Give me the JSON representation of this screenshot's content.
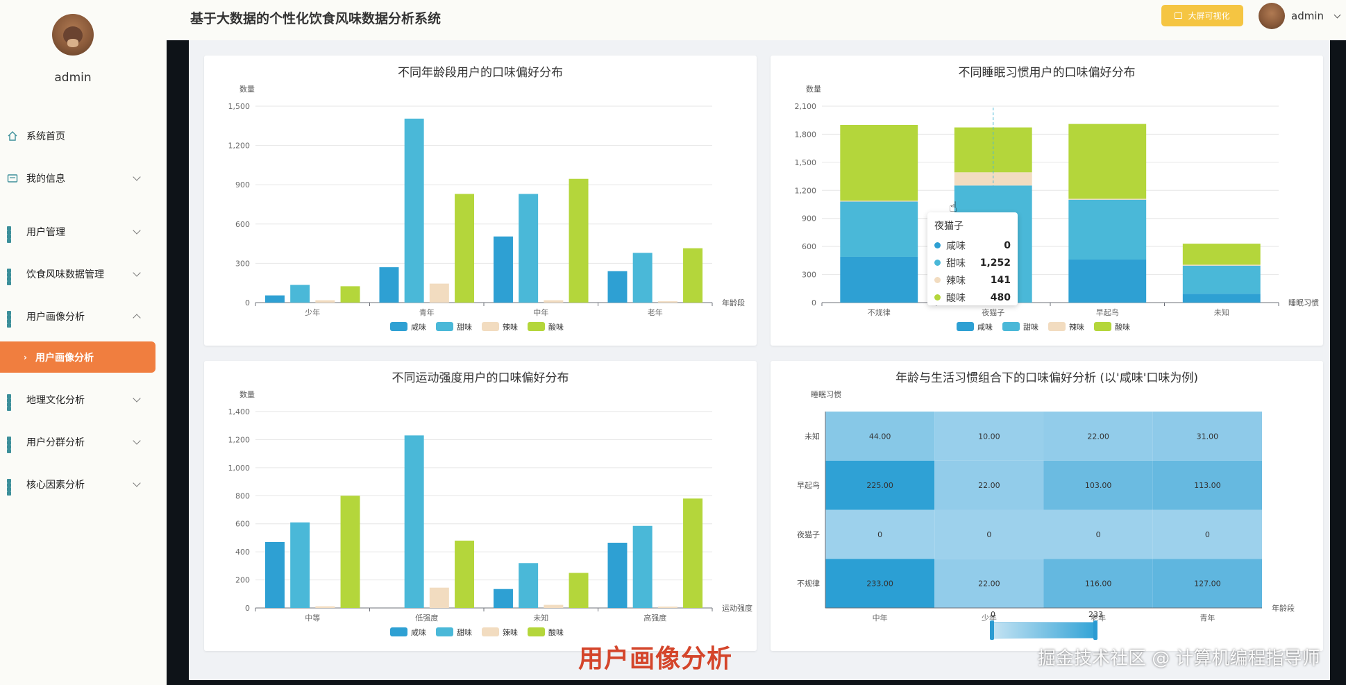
{
  "app": {
    "title": "基于大数据的个性化饮食风味数据分析系统"
  },
  "header": {
    "bigscreen_label": "大屏可视化",
    "user": "admin"
  },
  "sidebar": {
    "user": "admin",
    "items": [
      {
        "label": "系统首页",
        "icon": "home-icon"
      },
      {
        "label": "我的信息",
        "icon": "card-icon"
      },
      {
        "label": "用户管理",
        "icon": "grid-icon"
      },
      {
        "label": "饮食风味数据管理",
        "icon": "grid-icon"
      },
      {
        "label": "用户画像分析",
        "icon": "grid-icon"
      },
      {
        "label": "地理文化分析",
        "icon": "grid-icon"
      },
      {
        "label": "用户分群分析",
        "icon": "grid-icon"
      },
      {
        "label": "核心因素分析",
        "icon": "grid-icon"
      }
    ],
    "active_sub": "用户画像分析"
  },
  "colors": {
    "salty": "#2ea0d3",
    "sweet": "#4ab8d8",
    "spicy": "#f2dcc0",
    "sour": "#b4d63b",
    "accent": "#f07e3f"
  },
  "chart_data": [
    {
      "type": "bar",
      "title": "不同年龄段用户的口味偏好分布",
      "ylabel": "数量",
      "xlabel": "年龄段",
      "categories": [
        "少年",
        "青年",
        "中年",
        "老年"
      ],
      "ylim": [
        0,
        1500
      ],
      "yticks": [
        "0",
        "300",
        "600",
        "900",
        "1,200",
        "1,500"
      ],
      "legend": "bottom",
      "series": [
        {
          "name": "咸味",
          "values": [
            55,
            270,
            505,
            240
          ]
        },
        {
          "name": "甜味",
          "values": [
            135,
            1405,
            830,
            380
          ]
        },
        {
          "name": "辣味",
          "values": [
            18,
            145,
            18,
            10
          ]
        },
        {
          "name": "酸味",
          "values": [
            125,
            830,
            945,
            415
          ]
        }
      ]
    },
    {
      "type": "bar",
      "stacked": true,
      "title": "不同睡眠习惯用户的口味偏好分布",
      "ylabel": "数量",
      "xlabel": "睡眠习惯",
      "categories": [
        "不规律",
        "夜猫子",
        "早起鸟",
        "未知"
      ],
      "ylim": [
        0,
        2100
      ],
      "yticks": [
        "0",
        "300",
        "600",
        "900",
        "1,200",
        "1,500",
        "1,800",
        "2,100"
      ],
      "legend": "bottom",
      "series": [
        {
          "name": "咸味",
          "values": [
            490,
            0,
            460,
            95
          ]
        },
        {
          "name": "甜味",
          "values": [
            590,
            1252,
            640,
            300
          ]
        },
        {
          "name": "辣味",
          "values": [
            10,
            141,
            10,
            10
          ]
        },
        {
          "name": "酸味",
          "values": [
            810,
            480,
            800,
            225
          ]
        }
      ],
      "tooltip": {
        "title": "夜猫子",
        "rows": [
          {
            "name": "咸味",
            "value": "0"
          },
          {
            "name": "甜味",
            "value": "1,252"
          },
          {
            "name": "辣味",
            "value": "141"
          },
          {
            "name": "酸味",
            "value": "480"
          }
        ]
      }
    },
    {
      "type": "bar",
      "title": "不同运动强度用户的口味偏好分布",
      "ylabel": "数量",
      "xlabel": "运动强度",
      "categories": [
        "中等",
        "低强度",
        "未知",
        "高强度"
      ],
      "ylim": [
        0,
        1400
      ],
      "yticks": [
        "0",
        "200",
        "400",
        "600",
        "800",
        "1,000",
        "1,200",
        "1,400"
      ],
      "legend": "bottom",
      "series": [
        {
          "name": "咸味",
          "values": [
            470,
            0,
            135,
            465
          ]
        },
        {
          "name": "甜味",
          "values": [
            610,
            1230,
            320,
            585
          ]
        },
        {
          "name": "辣味",
          "values": [
            12,
            145,
            22,
            10
          ]
        },
        {
          "name": "酸味",
          "values": [
            800,
            480,
            250,
            780
          ]
        }
      ]
    },
    {
      "type": "heatmap",
      "title": "年龄与生活习惯组合下的口味偏好分析 (以'咸味'口味为例)",
      "ylabel": "睡眠习惯",
      "xlabel": "年龄段",
      "x": [
        "中年",
        "少年",
        "老年",
        "青年"
      ],
      "y": [
        "未知",
        "早起鸟",
        "夜猫子",
        "不规律"
      ],
      "values": [
        [
          "44.00",
          "10.00",
          "22.00",
          "31.00"
        ],
        [
          "225.00",
          "22.00",
          "103.00",
          "113.00"
        ],
        [
          "0",
          "0",
          "0",
          "0"
        ],
        [
          "233.00",
          "22.00",
          "116.00",
          "127.00"
        ]
      ],
      "numeric": [
        [
          44,
          10,
          22,
          31
        ],
        [
          225,
          22,
          103,
          113
        ],
        [
          0,
          0,
          0,
          0
        ],
        [
          233,
          22,
          116,
          127
        ]
      ],
      "visual_map": {
        "min": "0",
        "max": "233"
      }
    }
  ],
  "overlay": {
    "caption": "用户画像分析",
    "watermark": "掘金技术社区 @ 计算机编程指导师"
  }
}
